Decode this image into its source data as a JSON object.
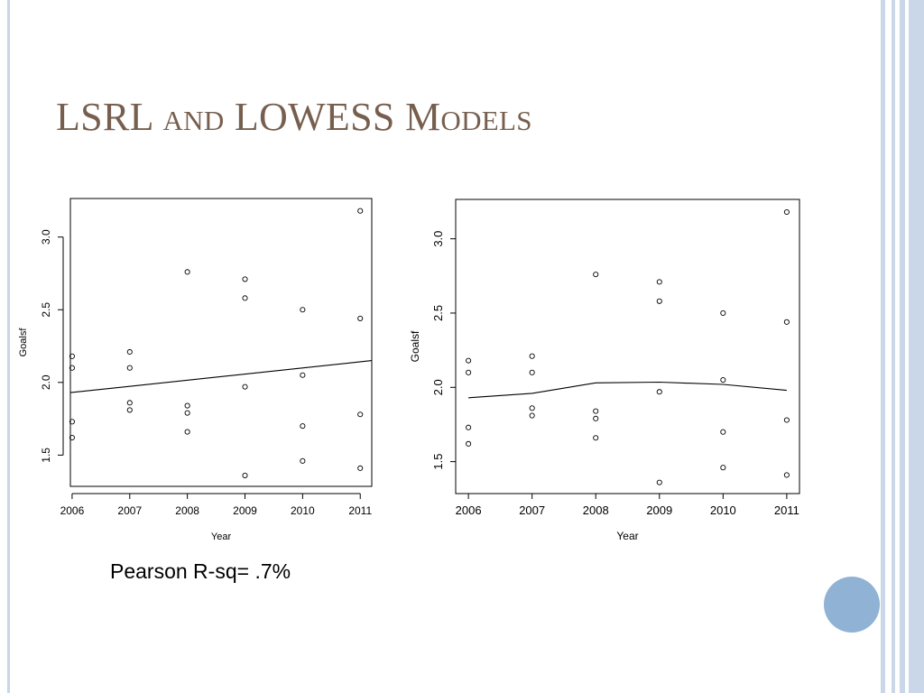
{
  "slide": {
    "title_main_1": "LSRL",
    "title_small_1": "and",
    "title_main_2": "LOWESS",
    "title_main_3": "M",
    "title_small_2": "odels",
    "note": "Pearson R-sq= .7%"
  },
  "theme": {
    "title_color": "#775f4f",
    "accent_circle": "#8fb2d5",
    "stripe_color": "#c9d7e8"
  },
  "chart_data": [
    {
      "type": "scatter",
      "title": "",
      "xlabel": "Year",
      "ylabel": "Goalsf",
      "xlim": [
        2005.97,
        2011.2
      ],
      "ylim": [
        1.285,
        3.265
      ],
      "x_ticks": [
        2006,
        2007,
        2008,
        2009,
        2010,
        2011
      ],
      "y_ticks": [
        1.5,
        2.0,
        2.5,
        3.0
      ],
      "y_tick_labels": [
        "1.5",
        "2.0",
        "2.5",
        "3.0"
      ],
      "grid": false,
      "points": [
        [
          2006,
          2.18
        ],
        [
          2006,
          2.1
        ],
        [
          2006,
          1.73
        ],
        [
          2006,
          1.62
        ],
        [
          2007,
          2.21
        ],
        [
          2007,
          2.1
        ],
        [
          2007,
          1.86
        ],
        [
          2007,
          1.81
        ],
        [
          2008,
          2.76
        ],
        [
          2008,
          1.84
        ],
        [
          2008,
          1.79
        ],
        [
          2008,
          1.66
        ],
        [
          2009,
          2.71
        ],
        [
          2009,
          2.58
        ],
        [
          2009,
          1.97
        ],
        [
          2009,
          1.36
        ],
        [
          2010,
          2.5
        ],
        [
          2010,
          2.05
        ],
        [
          2010,
          1.7
        ],
        [
          2010,
          1.46
        ],
        [
          2011,
          3.18
        ],
        [
          2011,
          2.44
        ],
        [
          2011,
          1.78
        ],
        [
          2011,
          1.41
        ]
      ],
      "fit_line": {
        "x": [
          2005.97,
          2011.2
        ],
        "y": [
          1.93,
          2.15
        ]
      }
    },
    {
      "type": "scatter",
      "title": "",
      "xlabel": "Year",
      "ylabel": "Goalsf",
      "xlim": [
        2005.8,
        2011.2
      ],
      "ylim": [
        1.285,
        3.265
      ],
      "x_ticks": [
        2006,
        2007,
        2008,
        2009,
        2010,
        2011
      ],
      "y_ticks": [
        1.5,
        2.0,
        2.5,
        3.0
      ],
      "y_tick_labels": [
        "1.5",
        "2.0",
        "2.5",
        "3.0"
      ],
      "grid": false,
      "points": [
        [
          2006,
          2.18
        ],
        [
          2006,
          2.1
        ],
        [
          2006,
          1.73
        ],
        [
          2006,
          1.62
        ],
        [
          2007,
          2.21
        ],
        [
          2007,
          2.1
        ],
        [
          2007,
          1.86
        ],
        [
          2007,
          1.81
        ],
        [
          2008,
          2.76
        ],
        [
          2008,
          1.84
        ],
        [
          2008,
          1.79
        ],
        [
          2008,
          1.66
        ],
        [
          2009,
          2.71
        ],
        [
          2009,
          2.58
        ],
        [
          2009,
          1.97
        ],
        [
          2009,
          1.36
        ],
        [
          2010,
          2.5
        ],
        [
          2010,
          2.05
        ],
        [
          2010,
          1.7
        ],
        [
          2010,
          1.46
        ],
        [
          2011,
          3.18
        ],
        [
          2011,
          2.44
        ],
        [
          2011,
          1.78
        ],
        [
          2011,
          1.41
        ]
      ],
      "fit_line": {
        "x": [
          2006,
          2007,
          2008,
          2009,
          2010,
          2011
        ],
        "y": [
          1.93,
          1.96,
          2.03,
          2.035,
          2.02,
          1.98
        ]
      }
    }
  ]
}
